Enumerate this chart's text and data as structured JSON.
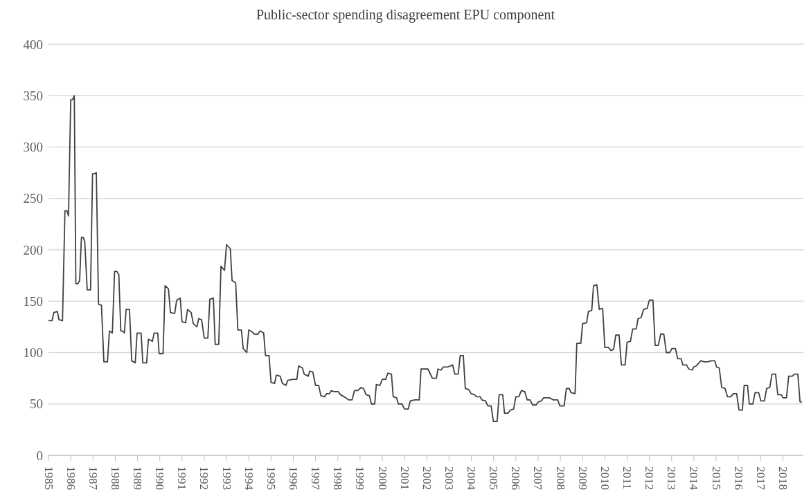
{
  "chart_data": {
    "type": "line",
    "title": "Public-sector spending disagreement EPU component",
    "x": [
      1985.0,
      1985.16,
      1985.24,
      1985.4,
      1985.47,
      1985.63,
      1985.74,
      1985.83,
      1985.9,
      1986.0,
      1986.08,
      1986.16,
      1986.23,
      1986.32,
      1986.4,
      1986.48,
      1986.56,
      1986.63,
      1986.74,
      1986.89,
      1986.98,
      1987.07,
      1987.15,
      1987.25,
      1987.38,
      1987.49,
      1987.65,
      1987.74,
      1987.87,
      1987.97,
      1988.07,
      1988.16,
      1988.25,
      1988.33,
      1988.41,
      1988.49,
      1988.64,
      1988.74,
      1988.9,
      1988.98,
      1989.16,
      1989.24,
      1989.41,
      1989.49,
      1989.67,
      1989.75,
      1989.91,
      1989.97,
      1990.15,
      1990.24,
      1990.39,
      1990.48,
      1990.67,
      1990.76,
      1990.92,
      1991.0,
      1991.16,
      1991.25,
      1991.41,
      1991.51,
      1991.67,
      1991.75,
      1991.88,
      1992.0,
      1992.16,
      1992.25,
      1992.41,
      1992.49,
      1992.65,
      1992.75,
      1992.91,
      1993.0,
      1993.17,
      1993.25,
      1993.41,
      1993.51,
      1993.67,
      1993.75,
      1993.91,
      1994.0,
      1994.16,
      1994.25,
      1994.41,
      1994.51,
      1994.67,
      1994.75,
      1994.91,
      1995.0,
      1995.16,
      1995.24,
      1995.41,
      1995.51,
      1995.67,
      1995.75,
      1996.0,
      1996.16,
      1996.24,
      1996.41,
      1996.49,
      1996.67,
      1996.74,
      1996.88,
      1997.0,
      1997.14,
      1997.24,
      1997.4,
      1997.5,
      1997.62,
      1997.71,
      1997.81,
      1998.02,
      1998.12,
      1998.28,
      1998.49,
      1998.64,
      1998.75,
      1998.9,
      1999.04,
      1999.16,
      1999.27,
      1999.42,
      1999.51,
      1999.66,
      1999.73,
      1999.89,
      2000.0,
      2000.15,
      2000.25,
      2000.41,
      2000.49,
      2000.64,
      2000.72,
      2000.88,
      2001.0,
      2001.16,
      2001.26,
      2001.45,
      2001.66,
      2001.74,
      2002.05,
      2002.25,
      2002.43,
      2002.5,
      2002.64,
      2002.74,
      2002.95,
      2003.16,
      2003.26,
      2003.41,
      2003.5,
      2003.64,
      2003.73,
      2003.88,
      2003.99,
      2004.14,
      2004.24,
      2004.4,
      2004.47,
      2004.64,
      2004.74,
      2004.89,
      2004.99,
      2005.16,
      2005.25,
      2005.41,
      2005.49,
      2005.65,
      2005.75,
      2005.9,
      2006.0,
      2006.13,
      2006.25,
      2006.4,
      2006.51,
      2006.63,
      2006.76,
      2006.91,
      2007.01,
      2007.15,
      2007.25,
      2007.51,
      2007.67,
      2007.88,
      2007.98,
      2008.17,
      2008.27,
      2008.4,
      2008.48,
      2008.66,
      2008.74,
      2008.92,
      2009.0,
      2009.18,
      2009.26,
      2009.41,
      2009.49,
      2009.64,
      2009.75,
      2009.9,
      2010.0,
      2010.16,
      2010.27,
      2010.39,
      2010.49,
      2010.64,
      2010.74,
      2010.91,
      2011.0,
      2011.15,
      2011.25,
      2011.41,
      2011.49,
      2011.63,
      2011.74,
      2011.9,
      2012.0,
      2012.16,
      2012.26,
      2012.4,
      2012.51,
      2012.65,
      2012.76,
      2012.91,
      2013.02,
      2013.17,
      2013.27,
      2013.43,
      2013.5,
      2013.67,
      2013.77,
      2013.92,
      2014.0,
      2014.1,
      2014.31,
      2014.47,
      2014.62,
      2014.78,
      2014.94,
      2015.02,
      2015.14,
      2015.25,
      2015.4,
      2015.51,
      2015.66,
      2015.77,
      2015.92,
      2016.03,
      2016.18,
      2016.26,
      2016.41,
      2016.49,
      2016.65,
      2016.75,
      2016.91,
      2017.01,
      2017.17,
      2017.27,
      2017.41,
      2017.51,
      2017.67,
      2017.77,
      2017.93,
      2018.0,
      2018.16,
      2018.26,
      2018.42,
      2018.52,
      2018.67,
      2018.77,
      2018.85
    ],
    "series": [
      {
        "color": "#404040",
        "values": [
          131,
          131,
          139,
          140,
          132,
          131,
          238,
          238,
          233,
          346,
          346,
          350,
          167,
          167,
          170,
          212,
          212,
          208,
          161,
          161,
          274,
          274,
          275,
          147,
          146,
          91,
          91,
          121,
          119,
          179,
          179,
          176,
          121,
          121,
          119,
          142,
          142,
          92,
          90,
          119,
          119,
          90,
          90,
          113,
          111,
          119,
          119,
          99,
          99,
          165,
          162,
          139,
          138,
          151,
          153,
          130,
          129,
          142,
          139,
          128,
          125,
          133,
          132,
          114,
          114,
          152,
          153,
          108,
          108,
          184,
          180,
          205,
          201,
          170,
          168,
          122,
          122,
          104,
          100,
          122,
          120,
          118,
          118,
          121,
          119,
          97,
          97,
          71,
          70,
          78,
          77,
          70,
          68,
          73,
          74,
          74,
          87,
          85,
          79,
          77,
          82,
          81,
          68,
          68,
          58,
          57,
          60,
          60,
          63,
          62,
          62,
          59,
          57,
          54,
          54,
          63,
          63,
          66,
          65,
          59,
          58,
          50,
          50,
          69,
          68,
          74,
          74,
          80,
          79,
          57,
          56,
          50,
          50,
          45,
          45,
          53,
          54,
          54,
          84,
          84,
          75,
          75,
          84,
          83,
          86,
          86,
          88,
          79,
          79,
          97,
          97,
          65,
          64,
          60,
          59,
          57,
          57,
          54,
          53,
          48,
          48,
          33,
          33,
          59,
          59,
          41,
          41,
          44,
          45,
          57,
          57,
          63,
          62,
          54,
          54,
          49,
          49,
          52,
          53,
          56,
          56,
          54,
          54,
          48,
          48,
          65,
          65,
          61,
          60,
          109,
          109,
          128,
          129,
          140,
          141,
          165,
          166,
          142,
          143,
          105,
          105,
          102,
          103,
          117,
          117,
          88,
          88,
          110,
          111,
          123,
          123,
          133,
          134,
          142,
          143,
          151,
          151,
          107,
          107,
          118,
          118,
          100,
          100,
          104,
          104,
          94,
          94,
          88,
          88,
          84,
          83,
          86,
          87,
          92,
          91,
          91,
          92,
          92,
          86,
          85,
          66,
          65,
          57,
          57,
          60,
          60,
          44,
          44,
          68,
          68,
          50,
          50,
          61,
          61,
          53,
          53,
          65,
          66,
          79,
          79,
          59,
          59,
          56,
          56,
          77,
          77,
          79,
          79,
          52,
          52
        ]
      }
    ],
    "xlim": [
      1985,
      2018.92
    ],
    "xticks": [
      1985,
      1986,
      1987,
      1988,
      1989,
      1990,
      1991,
      1992,
      1993,
      1994,
      1995,
      1996,
      1997,
      1998,
      1999,
      2000,
      2001,
      2002,
      2003,
      2004,
      2005,
      2006,
      2007,
      2008,
      2009,
      2010,
      2011,
      2012,
      2013,
      2014,
      2015,
      2016,
      2017,
      2018
    ],
    "ylim": [
      0,
      400
    ],
    "yticks": [
      0,
      50,
      100,
      150,
      200,
      250,
      300,
      350,
      400
    ],
    "grid": "y",
    "legend": false,
    "marker": "none",
    "line_style": "solid"
  }
}
